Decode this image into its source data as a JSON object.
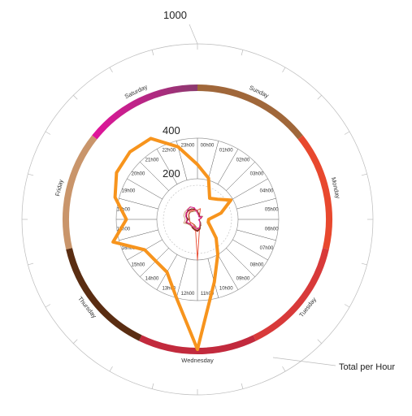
{
  "chart_data": {
    "type": "radial-line",
    "title": "",
    "scale_labels": [
      "1000",
      "400",
      "200"
    ],
    "hours": [
      "00h00",
      "01h00",
      "02h00",
      "03h00",
      "04h00",
      "05h00",
      "06h00",
      "07h00",
      "08h00",
      "09h00",
      "10h00",
      "11h00",
      "12h00",
      "13h00",
      "14h00",
      "15h00",
      "16h00",
      "17h00",
      "18h00",
      "19h00",
      "20h00",
      "21h00",
      "22h00",
      "23h00"
    ],
    "days": [
      {
        "name": "Sunday",
        "color": "#a0673a"
      },
      {
        "name": "Monday",
        "color": "#e8482e"
      },
      {
        "name": "Tuesday",
        "color": "#d83a3a"
      },
      {
        "name": "Wednesday",
        "color": "#c22a3d"
      },
      {
        "name": "Thursday",
        "color": "#5a2d12"
      },
      {
        "name": "Friday",
        "color": "#c9956b"
      },
      {
        "name": "Saturday",
        "color": "#e0149a"
      }
    ],
    "saturday_gradient_to": "#8b3a6e",
    "total_series": {
      "name": "Total per Hour",
      "color": "#f7941d",
      "values": [
        270,
        210,
        120,
        140,
        190,
        120,
        55,
        55,
        75,
        130,
        200,
        320,
        640,
        400,
        300,
        290,
        300,
        430,
        350,
        420,
        460,
        470,
        460,
        370
      ]
    },
    "day_series": [
      {
        "day": "Sunday",
        "color": "#a0673a",
        "values": [
          40,
          25,
          18,
          15,
          30,
          15,
          8,
          8,
          12,
          18,
          35,
          40,
          45,
          35,
          30,
          32,
          35,
          40,
          38,
          42,
          48,
          50,
          45,
          42
        ]
      },
      {
        "day": "Monday",
        "color": "#e8482e",
        "values": [
          45,
          55,
          20,
          18,
          25,
          20,
          10,
          10,
          12,
          20,
          30,
          40,
          200,
          40,
          35,
          30,
          35,
          40,
          42,
          45,
          50,
          55,
          50,
          48
        ]
      },
      {
        "day": "Tuesday",
        "color": "#d83a3a",
        "values": [
          40,
          30,
          15,
          20,
          22,
          18,
          8,
          9,
          10,
          20,
          30,
          50,
          60,
          55,
          50,
          45,
          40,
          60,
          50,
          55,
          60,
          62,
          55,
          50
        ]
      },
      {
        "day": "Wednesday",
        "color": "#c22a3d",
        "values": [
          42,
          28,
          18,
          16,
          24,
          16,
          9,
          8,
          11,
          18,
          28,
          45,
          55,
          50,
          45,
          40,
          45,
          55,
          48,
          60,
          65,
          60,
          58,
          55
        ]
      },
      {
        "day": "Thursday",
        "color": "#5a2d12",
        "values": [
          38,
          26,
          16,
          22,
          28,
          17,
          8,
          7,
          10,
          22,
          30,
          48,
          58,
          52,
          48,
          42,
          50,
          58,
          45,
          58,
          62,
          64,
          60,
          52
        ]
      },
      {
        "day": "Friday",
        "color": "#c9956b",
        "values": [
          36,
          22,
          14,
          18,
          30,
          16,
          7,
          6,
          9,
          18,
          26,
          42,
          50,
          48,
          42,
          46,
          48,
          70,
          60,
          70,
          72,
          70,
          72,
          58
        ]
      },
      {
        "day": "Saturday",
        "color": "#e0149a",
        "values": [
          30,
          20,
          14,
          16,
          26,
          14,
          6,
          6,
          8,
          16,
          24,
          40,
          48,
          44,
          40,
          42,
          44,
          55,
          52,
          60,
          62,
          68,
          70,
          60
        ]
      }
    ],
    "annotation": "Total per Hour"
  }
}
